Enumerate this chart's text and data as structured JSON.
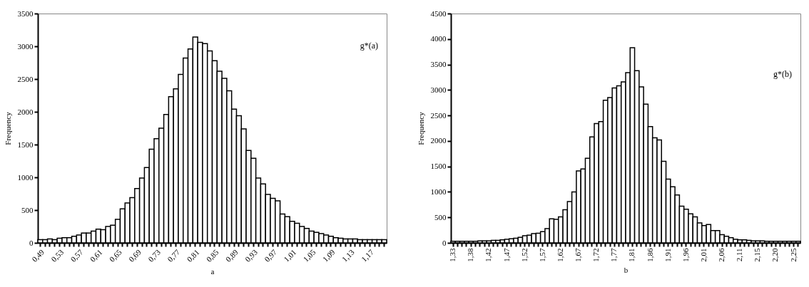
{
  "chart_data": [
    {
      "type": "bar",
      "xlabel": "a",
      "ylabel": "Frequency",
      "annotations": [
        "g*(a)"
      ],
      "categories": [
        "0,49",
        null,
        null,
        null,
        "0,53",
        null,
        null,
        null,
        "0,57",
        null,
        null,
        null,
        "0,61",
        null,
        null,
        null,
        "0,65",
        null,
        null,
        null,
        "0,69",
        null,
        null,
        null,
        "0,73",
        null,
        null,
        null,
        "0,77",
        null,
        null,
        null,
        "0,81",
        null,
        null,
        null,
        "0,85",
        null,
        null,
        null,
        "0,89",
        null,
        null,
        null,
        "0,93",
        null,
        null,
        null,
        "0,97",
        null,
        null,
        null,
        "1,01",
        null,
        null,
        null,
        "1,05",
        null,
        null,
        null,
        "1,09",
        null,
        null,
        null,
        "1,13",
        null,
        null,
        null,
        "1,17",
        null,
        null,
        null
      ],
      "series": [
        {
          "color": "#ffffff",
          "values": [
            50,
            50,
            60,
            50,
            70,
            80,
            80,
            100,
            120,
            150,
            150,
            180,
            210,
            200,
            250,
            270,
            360,
            520,
            610,
            690,
            830,
            990,
            1150,
            1430,
            1590,
            1750,
            1960,
            2230,
            2350,
            2570,
            2820,
            2960,
            3140,
            3060,
            3040,
            2930,
            2780,
            2620,
            2510,
            2320,
            2040,
            1940,
            1740,
            1410,
            1290,
            990,
            900,
            740,
            680,
            640,
            440,
            400,
            330,
            300,
            250,
            220,
            180,
            160,
            140,
            120,
            100,
            80,
            70,
            60,
            60,
            60,
            50,
            50,
            50,
            50,
            50,
            50
          ]
        }
      ],
      "ylim": [
        0,
        3500
      ],
      "yticks": [
        0,
        500,
        1000,
        1500,
        2000,
        2500,
        3000,
        3500
      ],
      "grid": false
    },
    {
      "type": "bar",
      "xlabel": "b",
      "ylabel": "Frequency",
      "annotations": [
        "g*(b)"
      ],
      "categories": [
        "1,33",
        null,
        null,
        null,
        "1,38",
        null,
        null,
        null,
        "1,42",
        null,
        null,
        null,
        "1,47",
        null,
        null,
        null,
        "1,52",
        null,
        null,
        null,
        "1,57",
        null,
        null,
        null,
        "1,62",
        null,
        null,
        null,
        "1,67",
        null,
        null,
        null,
        "1,72",
        null,
        null,
        null,
        "1,77",
        null,
        null,
        null,
        "1,81",
        null,
        null,
        null,
        "1,86",
        null,
        null,
        null,
        "1,91",
        null,
        null,
        null,
        "1,96",
        null,
        null,
        null,
        "2,01",
        null,
        null,
        null,
        "2,06",
        null,
        null,
        null,
        "2,11",
        null,
        null,
        null,
        "2,15",
        null,
        null,
        null,
        "2,20",
        null,
        null,
        null,
        "2,25",
        null
      ],
      "series": [
        {
          "color": "#ffffff",
          "values": [
            30,
            30,
            30,
            30,
            30,
            30,
            40,
            40,
            40,
            50,
            50,
            60,
            70,
            80,
            90,
            110,
            140,
            150,
            180,
            190,
            220,
            280,
            470,
            460,
            510,
            650,
            810,
            1000,
            1410,
            1450,
            1660,
            2080,
            2340,
            2380,
            2800,
            2850,
            3040,
            3080,
            3160,
            3340,
            3830,
            3380,
            3060,
            2720,
            2280,
            2060,
            2020,
            1600,
            1250,
            1100,
            940,
            720,
            660,
            570,
            510,
            390,
            340,
            360,
            240,
            240,
            160,
            130,
            100,
            70,
            60,
            60,
            50,
            40,
            40,
            40,
            30,
            30,
            30,
            30,
            30,
            30,
            30,
            30
          ]
        }
      ],
      "ylim": [
        0,
        4500
      ],
      "yticks": [
        0,
        500,
        1000,
        1500,
        2000,
        2500,
        3000,
        3500,
        4000,
        4500
      ],
      "grid": false
    }
  ]
}
